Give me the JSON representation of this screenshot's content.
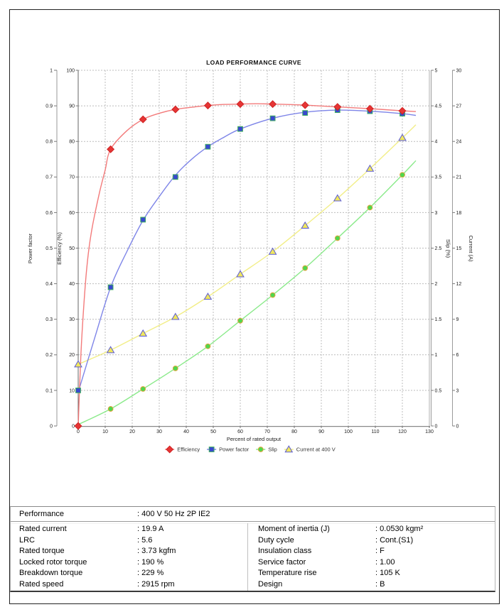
{
  "chart": {
    "title": "LOAD PERFORMANCE CURVE",
    "x_axis_title": "Percent of rated output",
    "axis_titles": {
      "power_factor": "Power factor",
      "efficiency": "Efficiency (%)",
      "slip": "Slip (%)",
      "current": "Current (A)"
    },
    "ticks": {
      "x": [
        "0",
        "10",
        "20",
        "30",
        "40",
        "50",
        "60",
        "70",
        "80",
        "90",
        "100",
        "110",
        "120",
        "130"
      ],
      "power_factor": [
        "0",
        "0.1",
        "0.2",
        "0.3",
        "0.4",
        "0.5",
        "0.6",
        "0.7",
        "0.8",
        "0.9",
        "1"
      ],
      "efficiency": [
        "0",
        "10",
        "20",
        "30",
        "40",
        "50",
        "60",
        "70",
        "80",
        "90",
        "100"
      ],
      "slip": [
        "0",
        "0.5",
        "1",
        "1.5",
        "2",
        "2.5",
        "3",
        "3.5",
        "4",
        "4.5",
        "5"
      ],
      "current": [
        "0",
        "3",
        "6",
        "9",
        "12",
        "15",
        "18",
        "21",
        "24",
        "27",
        "30"
      ]
    }
  },
  "chart_data": {
    "type": "line",
    "title": "LOAD PERFORMANCE CURVE",
    "xlabel": "Percent of rated output",
    "xlim": [
      0,
      130
    ],
    "grid": true,
    "legend_position": "bottom",
    "x": [
      0,
      12,
      24,
      36,
      48,
      60,
      72,
      84,
      96,
      108,
      120
    ],
    "series": [
      {
        "name": "Efficiency",
        "key": "efficiency",
        "axis": "Efficiency (%)",
        "axis_max": 100,
        "marker": "diamond",
        "line_color": "#f26d6d",
        "marker_fill": "#e63535",
        "marker_stroke": "#cf2222",
        "values": [
          0,
          77.8,
          86.2,
          89.0,
          90.1,
          90.5,
          90.5,
          90.2,
          89.7,
          89.2,
          88.6
        ],
        "line_points": [
          [
            0,
            0
          ],
          [
            1,
            20
          ],
          [
            2,
            33
          ],
          [
            3,
            43
          ],
          [
            4,
            50
          ],
          [
            5,
            55
          ],
          [
            6,
            59
          ],
          [
            8,
            66
          ],
          [
            10,
            72
          ],
          [
            12,
            77.8
          ],
          [
            18,
            83
          ],
          [
            24,
            86.2
          ],
          [
            30,
            87.9
          ],
          [
            36,
            89.0
          ],
          [
            42,
            89.6
          ],
          [
            48,
            90.1
          ],
          [
            54,
            90.4
          ],
          [
            60,
            90.5
          ],
          [
            66,
            90.6
          ],
          [
            72,
            90.5
          ],
          [
            84,
            90.2
          ],
          [
            96,
            89.7
          ],
          [
            108,
            89.2
          ],
          [
            120,
            88.6
          ],
          [
            125,
            88.4
          ]
        ]
      },
      {
        "name": "Power factor",
        "key": "power-factor",
        "axis": "Power factor",
        "axis_max": 1,
        "marker": "square",
        "line_color": "#7078e6",
        "marker_fill": "#3948cf",
        "marker_stroke": "#3fae5c",
        "values": [
          0.1,
          0.39,
          0.58,
          0.7,
          0.785,
          0.835,
          0.865,
          0.88,
          0.888,
          0.885,
          0.878
        ],
        "line_points": [
          [
            0,
            0.095
          ],
          [
            6,
            0.245
          ],
          [
            12,
            0.39
          ],
          [
            18,
            0.49
          ],
          [
            24,
            0.578
          ],
          [
            30,
            0.645
          ],
          [
            36,
            0.705
          ],
          [
            42,
            0.75
          ],
          [
            48,
            0.785
          ],
          [
            54,
            0.812
          ],
          [
            60,
            0.835
          ],
          [
            72,
            0.865
          ],
          [
            84,
            0.882
          ],
          [
            96,
            0.888
          ],
          [
            108,
            0.885
          ],
          [
            120,
            0.878
          ],
          [
            125,
            0.873
          ]
        ]
      },
      {
        "name": "Slip",
        "key": "slip",
        "axis": "Slip (%)",
        "axis_max": 5,
        "marker": "circle",
        "line_color": "#7de87d",
        "marker_fill": "#4ed84e",
        "marker_stroke": "#e0a33c",
        "values": [
          0,
          0.24,
          0.52,
          0.81,
          1.12,
          1.48,
          1.84,
          2.22,
          2.64,
          3.07,
          3.53
        ],
        "line_points": [
          [
            0,
            0.02
          ],
          [
            12,
            0.24
          ],
          [
            24,
            0.52
          ],
          [
            36,
            0.81
          ],
          [
            48,
            1.12
          ],
          [
            60,
            1.48
          ],
          [
            72,
            1.84
          ],
          [
            84,
            2.22
          ],
          [
            96,
            2.64
          ],
          [
            108,
            3.07
          ],
          [
            120,
            3.53
          ],
          [
            125,
            3.73
          ]
        ]
      },
      {
        "name": "Current at 400 V",
        "key": "current-at-400v",
        "axis": "Current (A)",
        "axis_max": 30,
        "marker": "triangle",
        "line_color": "#f1ec7a",
        "marker_fill": "#f0e75c",
        "marker_stroke": "#5b5bd6",
        "values": [
          5.2,
          6.4,
          7.8,
          9.2,
          10.9,
          12.8,
          14.7,
          16.9,
          19.2,
          21.7,
          24.3
        ],
        "line_points": [
          [
            0,
            5.2
          ],
          [
            12,
            6.4
          ],
          [
            24,
            7.8
          ],
          [
            36,
            9.2
          ],
          [
            48,
            10.9
          ],
          [
            60,
            12.8
          ],
          [
            72,
            14.7
          ],
          [
            84,
            16.9
          ],
          [
            96,
            19.2
          ],
          [
            108,
            21.7
          ],
          [
            120,
            24.3
          ],
          [
            125,
            25.4
          ]
        ]
      }
    ]
  },
  "table": {
    "performance_label": "Performance",
    "performance_value": ": 400 V 50 Hz 2P IE2",
    "rows": [
      {
        "l1": "Rated current",
        "v1": ": 19.9 A",
        "l2": "Moment of inertia (J)",
        "v2": ": 0.0530 kgm²"
      },
      {
        "l1": "LRC",
        "v1": ": 5.6",
        "l2": "Duty cycle",
        "v2": ": Cont.(S1)"
      },
      {
        "l1": "Rated torque",
        "v1": ": 3.73 kgfm",
        "l2": "Insulation class",
        "v2": ": F"
      },
      {
        "l1": "Locked rotor torque",
        "v1": ": 190 %",
        "l2": "Service factor",
        "v2": ": 1.00"
      },
      {
        "l1": "Breakdown torque",
        "v1": ": 229 %",
        "l2": "Temperature rise",
        "v2": ": 105 K"
      },
      {
        "l1": "Rated speed",
        "v1": ": 2915 rpm",
        "l2": "Design",
        "v2": ": B"
      }
    ]
  }
}
